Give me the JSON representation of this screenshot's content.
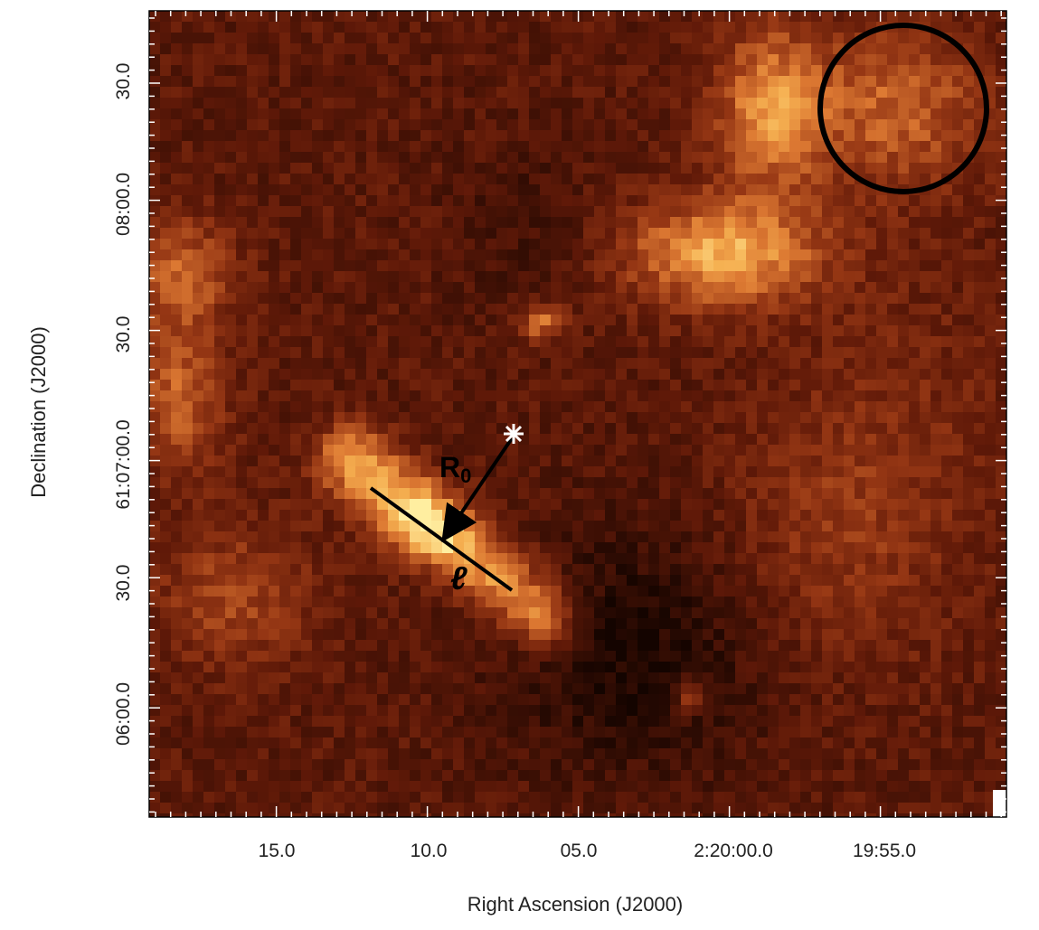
{
  "figure": {
    "x_axis_title": "Right Ascension (J2000)",
    "y_axis_title": "Declination (J2000)",
    "x_tick_labels": [
      "15.0",
      "10.0",
      "05.0",
      "2:20:00.0",
      "19:55.0"
    ],
    "y_tick_labels": [
      "30.0",
      "08:00.0",
      "30.0",
      "61:07:00.0",
      "30.0",
      "06:00.0"
    ],
    "annotations": {
      "radius_label": "R",
      "radius_subscript": "0",
      "length_label": "ℓ"
    },
    "colormap": {
      "dark": "#1a0500",
      "mid": "#8b2a08",
      "bright": "#e07a2a",
      "peak": "#ffe58a"
    },
    "icons": {
      "star_marker": "white-star-icon",
      "beam_circle": "beam-circle-icon",
      "arrow": "arrow-icon"
    }
  }
}
